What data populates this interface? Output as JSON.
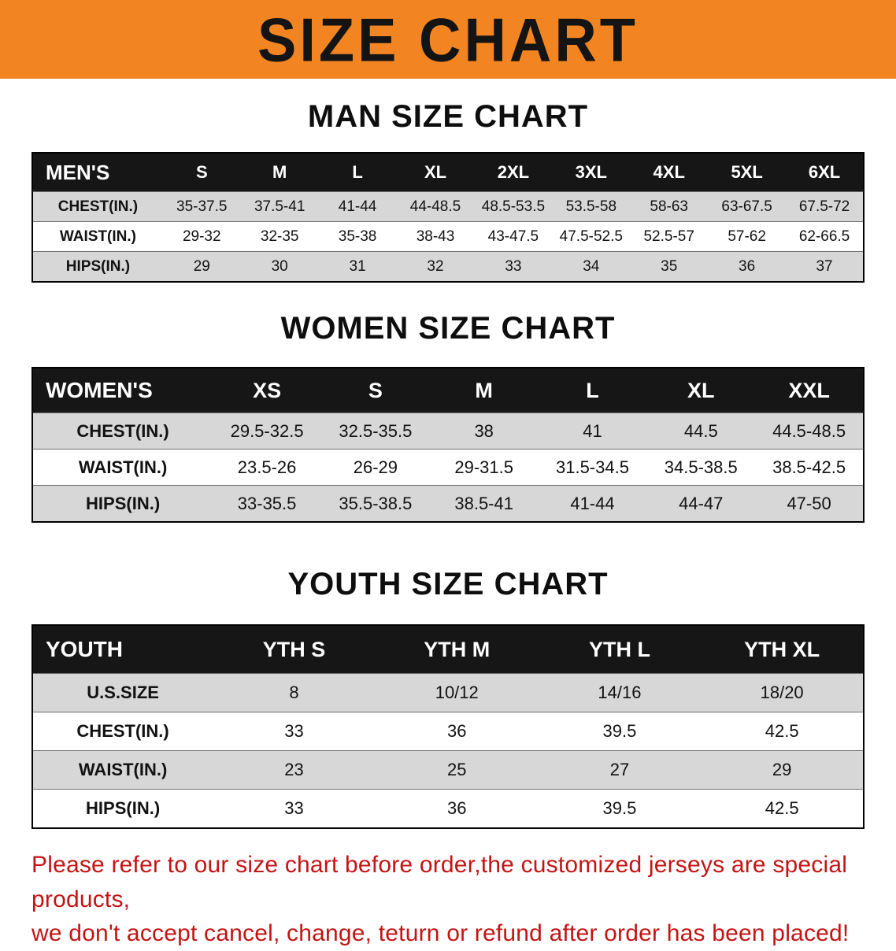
{
  "banner": {
    "title": "SIZE CHART"
  },
  "colors": {
    "banner_bg": "#F28522",
    "table_header_bg": "#161616",
    "row_alt_bg": "#D7D7D7",
    "notice_red": "#C41414"
  },
  "sections": [
    {
      "heading": "MAN SIZE CHART"
    },
    {
      "heading": "WOMEN SIZE CHART"
    },
    {
      "heading": "YOUTH SIZE CHART"
    }
  ],
  "tables": [
    {
      "name": "mens-size-table",
      "header_label": "MEN'S",
      "columns": [
        "S",
        "M",
        "L",
        "XL",
        "2XL",
        "3XL",
        "4XL",
        "5XL",
        "6XL"
      ],
      "rows": [
        {
          "label": "CHEST(IN.)",
          "values": [
            "35-37.5",
            "37.5-41",
            "41-44",
            "44-48.5",
            "48.5-53.5",
            "53.5-58",
            "58-63",
            "63-67.5",
            "67.5-72"
          ]
        },
        {
          "label": "WAIST(IN.)",
          "values": [
            "29-32",
            "32-35",
            "35-38",
            "38-43",
            "43-47.5",
            "47.5-52.5",
            "52.5-57",
            "57-62",
            "62-66.5"
          ]
        },
        {
          "label": "HIPS(IN.)",
          "values": [
            "29",
            "30",
            "31",
            "32",
            "33",
            "34",
            "35",
            "36",
            "37"
          ]
        }
      ]
    },
    {
      "name": "womens-size-table",
      "header_label": "WOMEN'S",
      "columns": [
        "XS",
        "S",
        "M",
        "L",
        "XL",
        "XXL"
      ],
      "rows": [
        {
          "label": "CHEST(IN.)",
          "values": [
            "29.5-32.5",
            "32.5-35.5",
            "38",
            "41",
            "44.5",
            "44.5-48.5"
          ]
        },
        {
          "label": "WAIST(IN.)",
          "values": [
            "23.5-26",
            "26-29",
            "29-31.5",
            "31.5-34.5",
            "34.5-38.5",
            "38.5-42.5"
          ]
        },
        {
          "label": "HIPS(IN.)",
          "values": [
            "33-35.5",
            "35.5-38.5",
            "38.5-41",
            "41-44",
            "44-47",
            "47-50"
          ]
        }
      ]
    },
    {
      "name": "youth-size-table",
      "header_label": "YOUTH",
      "columns": [
        "YTH S",
        "YTH M",
        "YTH L",
        "YTH XL"
      ],
      "rows": [
        {
          "label": "U.S.SIZE",
          "values": [
            "8",
            "10/12",
            "14/16",
            "18/20"
          ]
        },
        {
          "label": "CHEST(IN.)",
          "values": [
            "33",
            "36",
            "39.5",
            "42.5"
          ]
        },
        {
          "label": "WAIST(IN.)",
          "values": [
            "23",
            "25",
            "27",
            "29"
          ]
        },
        {
          "label": "HIPS(IN.)",
          "values": [
            "33",
            "36",
            "39.5",
            "42.5"
          ]
        }
      ]
    }
  ],
  "footer": {
    "line1": "Please refer to our size chart before order,the customized jerseys are special products,",
    "line2": "we don't accept cancel, change, teturn or refund after order has been placed!"
  }
}
